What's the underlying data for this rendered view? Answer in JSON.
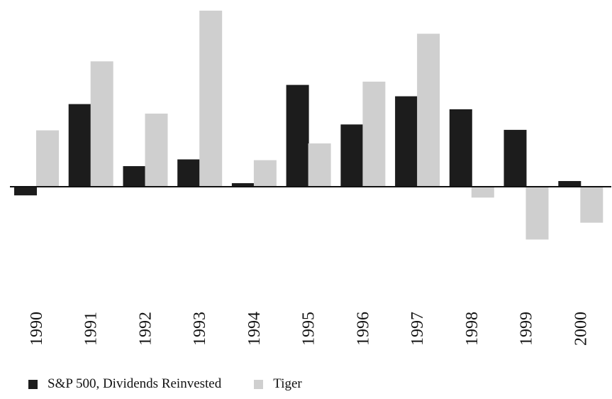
{
  "chart_data": {
    "type": "bar",
    "categories": [
      "1990",
      "1991",
      "1992",
      "1993",
      "1994",
      "1995",
      "1996",
      "1997",
      "1998",
      "1999",
      "2000"
    ],
    "series": [
      {
        "name": "S&P 500, Dividends Reinvested",
        "color": "#1c1c1c",
        "values": [
          -3.2,
          30.5,
          7.6,
          10.1,
          1.3,
          37.6,
          23.0,
          33.4,
          28.6,
          21.0,
          2.1
        ]
      },
      {
        "name": "Tiger",
        "color": "#cfcfcf",
        "values": [
          20.8,
          46.3,
          27.0,
          65.0,
          9.8,
          16.0,
          38.8,
          56.5,
          -4.0,
          -19.5,
          -13.3
        ]
      }
    ],
    "title": "",
    "xlabel": "",
    "ylabel": "",
    "ylim": [
      -30,
      65
    ],
    "grid": false,
    "legend": "bottom-left"
  }
}
